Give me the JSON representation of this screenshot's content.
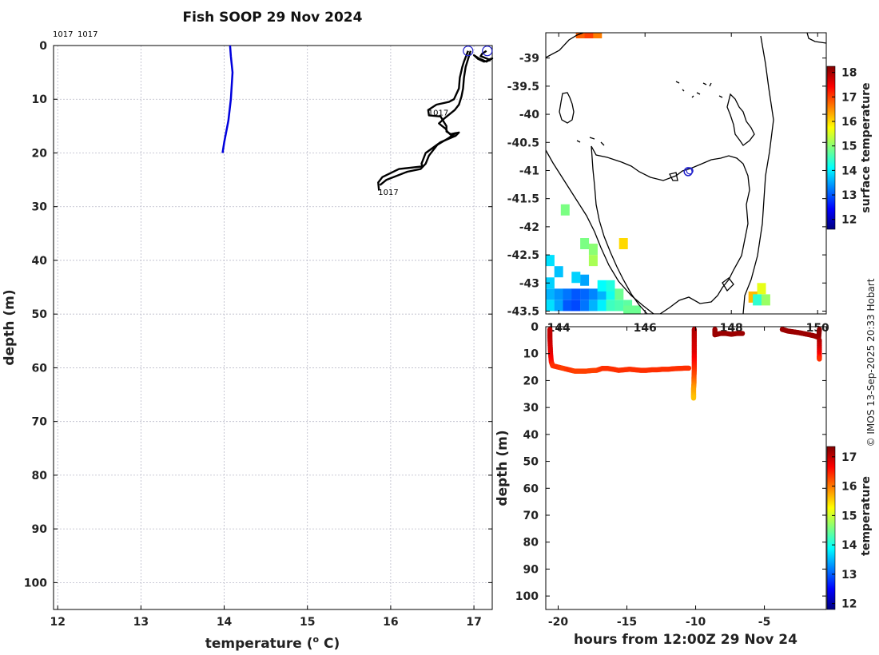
{
  "header": {
    "title": "Fish SOOP 29 Nov 2024"
  },
  "credit": "© IMOS 13-Sep-2025 20:33 Hobart",
  "colors": {
    "profile": "#0000dd",
    "tracks": "#000000",
    "marker": "#2222cc",
    "coast": "#000000",
    "colormap": [
      "#00007f",
      "#0000ff",
      "#007fff",
      "#00ffff",
      "#7fff7f",
      "#ffff00",
      "#ff7f00",
      "#ff0000",
      "#7f0000"
    ]
  },
  "chart_data": [
    {
      "id": "profile",
      "type": "line",
      "title": "Fish SOOP 29 Nov 2024",
      "xlabel": "temperature (o C)",
      "xlabel_prefix": "temperature (",
      "xlabel_sup": "o",
      "xlabel_suffix": " C)",
      "ylabel": "depth (m)",
      "xlim": [
        11.95,
        17.22
      ],
      "ylim": [
        105,
        0
      ],
      "xticks": [
        12,
        13,
        14,
        15,
        16,
        17
      ],
      "yticks": [
        0,
        10,
        20,
        30,
        40,
        50,
        60,
        70,
        80,
        90,
        100
      ],
      "grid": true,
      "top_labels": [
        "1017",
        "1017"
      ],
      "series": [
        {
          "name": "profile",
          "x": [
            14.07,
            14.08,
            14.1,
            14.08,
            14.05,
            14.0,
            13.98
          ],
          "y": [
            0,
            2,
            5,
            10,
            14,
            18,
            20
          ]
        }
      ],
      "tracks": [
        {
          "name": "track-a",
          "x": [
            16.93,
            16.88,
            16.86,
            16.83,
            16.82,
            16.76,
            16.7,
            16.55,
            16.45,
            16.46,
            16.6,
            16.63,
            16.67,
            16.67,
            16.72,
            16.75,
            16.82,
            16.78,
            16.6,
            16.42,
            16.37,
            16.38,
            16.1,
            15.9,
            15.85,
            15.86
          ],
          "y": [
            1,
            3,
            4,
            6,
            8,
            10,
            10.5,
            11,
            12,
            13,
            13.2,
            14,
            15,
            16,
            16.5,
            16.4,
            16.2,
            16.8,
            18,
            20,
            22,
            22.5,
            23,
            24.5,
            25.5,
            27
          ]
        },
        {
          "name": "track-b",
          "x": [
            16.96,
            16.93,
            16.9,
            16.88,
            16.87,
            16.85,
            16.82,
            16.77,
            16.65,
            16.58,
            16.62,
            16.66,
            16.68,
            16.72,
            16.78,
            16.7,
            16.56,
            16.46,
            16.42,
            16.36,
            16.2,
            15.95,
            15.87
          ],
          "y": [
            1,
            2.5,
            4,
            6,
            8,
            9.5,
            11,
            12,
            13.5,
            14.5,
            15,
            15.5,
            16,
            16.6,
            16.3,
            17.2,
            18.5,
            20.5,
            22,
            23,
            23.5,
            25,
            26
          ]
        },
        {
          "name": "track-c",
          "x": [
            17.15,
            17.1,
            17.08,
            17.12,
            17.18,
            17.22,
            17.15,
            17.06,
            17.0,
            17.05,
            17.12,
            17.2
          ],
          "y": [
            1,
            1.5,
            2,
            2.2,
            2.6,
            2.4,
            3,
            2.4,
            1.8,
            2.5,
            3,
            2.7
          ]
        }
      ],
      "markers": [
        {
          "x": 16.93,
          "y": 1
        },
        {
          "x": 17.16,
          "y": 1
        }
      ],
      "annotations": [
        {
          "text": "1017",
          "x": 16.45,
          "y": 12.4
        },
        {
          "text": "1017",
          "x": 15.85,
          "y": 27.2
        }
      ]
    },
    {
      "id": "map",
      "type": "heatmap",
      "xlim": [
        143.7,
        150.2
      ],
      "ylim": [
        -43.55,
        -38.55
      ],
      "xticks": [
        144,
        146,
        148,
        150
      ],
      "yticks": [
        -39,
        -39.5,
        -40,
        -40.5,
        -41,
        -41.5,
        -42,
        -42.5,
        -43,
        -43.5
      ],
      "colorbar": {
        "label": "surface temperature",
        "range": [
          11.6,
          18.25
        ],
        "ticks": [
          12,
          13,
          14,
          15,
          16,
          17,
          18
        ]
      },
      "vessel": {
        "lon": 147.0,
        "lat": -41.02
      },
      "sst_cells": [
        {
          "lon": 143.8,
          "lat": -43.2,
          "value": 13.6
        },
        {
          "lon": 144.0,
          "lat": -43.2,
          "value": 13.4
        },
        {
          "lon": 144.2,
          "lat": -43.2,
          "value": 13.2
        },
        {
          "lon": 144.4,
          "lat": -43.2,
          "value": 13.0
        },
        {
          "lon": 144.6,
          "lat": -43.2,
          "value": 13.1
        },
        {
          "lon": 144.8,
          "lat": -43.2,
          "value": 13.3
        },
        {
          "lon": 145.0,
          "lat": -43.2,
          "value": 13.6
        },
        {
          "lon": 145.2,
          "lat": -43.2,
          "value": 14.2
        },
        {
          "lon": 143.8,
          "lat": -43.4,
          "value": 13.9
        },
        {
          "lon": 144.0,
          "lat": -43.4,
          "value": 13.5
        },
        {
          "lon": 144.2,
          "lat": -43.4,
          "value": 13.0
        },
        {
          "lon": 144.4,
          "lat": -43.4,
          "value": 12.9
        },
        {
          "lon": 144.6,
          "lat": -43.4,
          "value": 13.2
        },
        {
          "lon": 144.8,
          "lat": -43.4,
          "value": 13.6
        },
        {
          "lon": 145.0,
          "lat": -43.4,
          "value": 14.0
        },
        {
          "lon": 145.2,
          "lat": -43.4,
          "value": 14.5
        },
        {
          "lon": 145.4,
          "lat": -43.4,
          "value": 14.6
        },
        {
          "lon": 145.6,
          "lat": -43.4,
          "value": 14.7
        },
        {
          "lon": 143.8,
          "lat": -43.0,
          "value": 13.8
        },
        {
          "lon": 144.0,
          "lat": -42.8,
          "value": 13.7
        },
        {
          "lon": 143.8,
          "lat": -42.6,
          "value": 13.9
        },
        {
          "lon": 144.8,
          "lat": -42.6,
          "value": 15.2
        },
        {
          "lon": 144.8,
          "lat": -42.4,
          "value": 15.0
        },
        {
          "lon": 144.6,
          "lat": -42.95,
          "value": 13.5
        },
        {
          "lon": 145.4,
          "lat": -43.2,
          "value": 14.8
        },
        {
          "lon": 144.4,
          "lat": -42.9,
          "value": 13.8
        },
        {
          "lon": 145.0,
          "lat": -43.05,
          "value": 14.1
        },
        {
          "lon": 145.2,
          "lat": -43.05,
          "value": 14.3
        },
        {
          "lon": 145.6,
          "lat": -43.5,
          "value": 14.8
        },
        {
          "lon": 145.8,
          "lat": -43.5,
          "value": 14.8
        },
        {
          "lon": 144.5,
          "lat": -38.55,
          "value": 16.8
        },
        {
          "lon": 144.7,
          "lat": -38.55,
          "value": 17.0
        },
        {
          "lon": 144.9,
          "lat": -38.55,
          "value": 16.6
        },
        {
          "lon": 145.5,
          "lat": -42.3,
          "value": 16.0
        },
        {
          "lon": 144.15,
          "lat": -41.7,
          "value": 14.9
        },
        {
          "lon": 148.7,
          "lat": -43.1,
          "value": 15.6
        },
        {
          "lon": 148.5,
          "lat": -43.25,
          "value": 16.2
        },
        {
          "lon": 148.6,
          "lat": -43.3,
          "value": 14.4
        },
        {
          "lon": 148.8,
          "lat": -43.3,
          "value": 15.1
        },
        {
          "lon": 144.6,
          "lat": -42.3,
          "value": 14.9
        }
      ]
    },
    {
      "id": "section",
      "type": "scatter",
      "xlabel": "hours from 12:00Z 29 Nov 24",
      "ylabel": "depth (m)",
      "xlim": [
        -20.9,
        -0.5
      ],
      "ylim": [
        105,
        0
      ],
      "xticks": [
        -20,
        -15,
        -10,
        -5
      ],
      "yticks": [
        0,
        10,
        20,
        30,
        40,
        50,
        60,
        70,
        80,
        90,
        100
      ],
      "colorbar": {
        "label": "temperature",
        "range": [
          11.8,
          17.35
        ],
        "ticks": [
          12,
          13,
          14,
          15,
          16,
          17
        ]
      },
      "points": [
        {
          "x": -20.6,
          "y": 1,
          "t": 17.0
        },
        {
          "x": -20.6,
          "y": 4,
          "t": 17.0
        },
        {
          "x": -20.58,
          "y": 7,
          "t": 16.9
        },
        {
          "x": -20.55,
          "y": 10,
          "t": 16.8
        },
        {
          "x": -20.5,
          "y": 13,
          "t": 16.6
        },
        {
          "x": -20.4,
          "y": 14.5,
          "t": 16.4
        },
        {
          "x": -20.0,
          "y": 15,
          "t": 16.4
        },
        {
          "x": -19.6,
          "y": 15.5,
          "t": 16.3
        },
        {
          "x": -19.2,
          "y": 16,
          "t": 16.4
        },
        {
          "x": -18.8,
          "y": 16.5,
          "t": 16.3
        },
        {
          "x": -18.4,
          "y": 16.5,
          "t": 16.3
        },
        {
          "x": -18.0,
          "y": 16.5,
          "t": 16.3
        },
        {
          "x": -17.6,
          "y": 16.3,
          "t": 16.3
        },
        {
          "x": -17.2,
          "y": 16.2,
          "t": 16.3
        },
        {
          "x": -16.8,
          "y": 15.5,
          "t": 16.4
        },
        {
          "x": -16.4,
          "y": 15.5,
          "t": 16.4
        },
        {
          "x": -16.0,
          "y": 15.8,
          "t": 16.4
        },
        {
          "x": -15.6,
          "y": 16.2,
          "t": 16.4
        },
        {
          "x": -15.2,
          "y": 16,
          "t": 16.4
        },
        {
          "x": -14.8,
          "y": 15.8,
          "t": 16.4
        },
        {
          "x": -14.4,
          "y": 16,
          "t": 16.4
        },
        {
          "x": -14.0,
          "y": 16.2,
          "t": 16.4
        },
        {
          "x": -13.6,
          "y": 16.2,
          "t": 16.4
        },
        {
          "x": -13.2,
          "y": 16,
          "t": 16.4
        },
        {
          "x": -12.8,
          "y": 16,
          "t": 16.4
        },
        {
          "x": -12.4,
          "y": 15.8,
          "t": 16.4
        },
        {
          "x": -12.0,
          "y": 15.8,
          "t": 16.4
        },
        {
          "x": -11.6,
          "y": 15.6,
          "t": 16.4
        },
        {
          "x": -11.2,
          "y": 15.5,
          "t": 16.4
        },
        {
          "x": -10.8,
          "y": 15.4,
          "t": 16.4
        },
        {
          "x": -10.5,
          "y": 15.4,
          "t": 16.4
        },
        {
          "x": -10.1,
          "y": 1,
          "t": 17.1
        },
        {
          "x": -10.1,
          "y": 4,
          "t": 17.0
        },
        {
          "x": -10.1,
          "y": 7,
          "t": 16.9
        },
        {
          "x": -10.1,
          "y": 10,
          "t": 16.8
        },
        {
          "x": -10.1,
          "y": 13,
          "t": 16.6
        },
        {
          "x": -10.1,
          "y": 16,
          "t": 16.4
        },
        {
          "x": -10.12,
          "y": 19,
          "t": 16.2
        },
        {
          "x": -10.12,
          "y": 21,
          "t": 16.0
        },
        {
          "x": -10.15,
          "y": 23,
          "t": 15.8
        },
        {
          "x": -10.15,
          "y": 25,
          "t": 15.7
        },
        {
          "x": -10.15,
          "y": 26.5,
          "t": 15.6
        },
        {
          "x": -8.6,
          "y": 1,
          "t": 17.2
        },
        {
          "x": -8.6,
          "y": 3,
          "t": 17.2
        },
        {
          "x": -8.2,
          "y": 2.5,
          "t": 17.2
        },
        {
          "x": -7.8,
          "y": 2.5,
          "t": 17.2
        },
        {
          "x": -7.4,
          "y": 2.8,
          "t": 17.2
        },
        {
          "x": -7.0,
          "y": 2.5,
          "t": 17.2
        },
        {
          "x": -6.6,
          "y": 2.5,
          "t": 17.2
        },
        {
          "x": -3.7,
          "y": 1,
          "t": 17.2
        },
        {
          "x": -3.3,
          "y": 1.6,
          "t": 17.2
        },
        {
          "x": -2.9,
          "y": 1.9,
          "t": 17.2
        },
        {
          "x": -2.5,
          "y": 2.2,
          "t": 17.2
        },
        {
          "x": -2.1,
          "y": 2.6,
          "t": 17.2
        },
        {
          "x": -1.7,
          "y": 3,
          "t": 17.2
        },
        {
          "x": -1.3,
          "y": 3.5,
          "t": 17.2
        },
        {
          "x": -1.05,
          "y": 4,
          "t": 17.2
        },
        {
          "x": -1.0,
          "y": 1,
          "t": 17.3
        },
        {
          "x": -1.0,
          "y": 5,
          "t": 17.1
        },
        {
          "x": -1.0,
          "y": 8,
          "t": 16.9
        },
        {
          "x": -1.0,
          "y": 11,
          "t": 16.6
        },
        {
          "x": -1.0,
          "y": 12,
          "t": 16.4
        }
      ]
    }
  ]
}
